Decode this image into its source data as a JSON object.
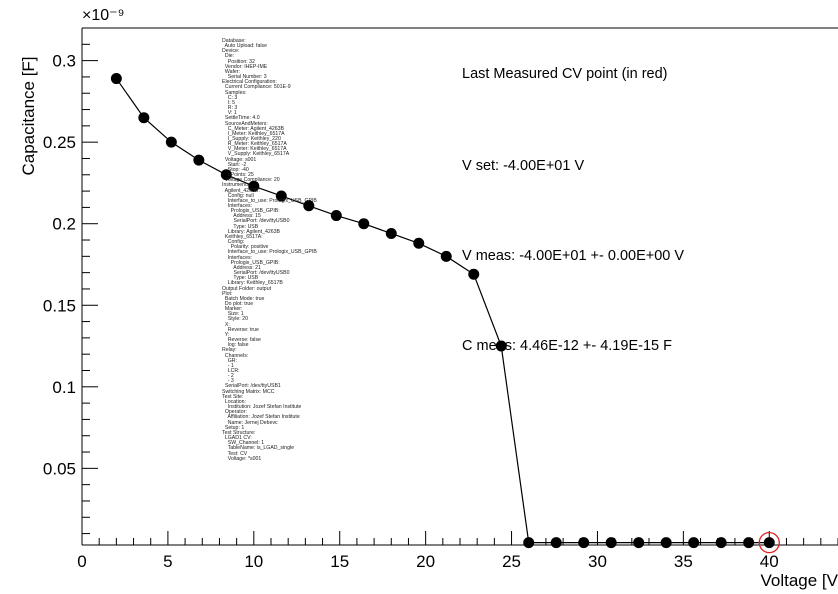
{
  "chart_data": {
    "type": "scatter",
    "title": "",
    "xlabel": "Voltage [V",
    "ylabel": "Capacitance [F]",
    "y_exponent": "×10⁻⁹",
    "xlim": [
      0,
      44
    ],
    "ylim": [
      0.003,
      0.32
    ],
    "x_ticks": [
      0,
      5,
      10,
      15,
      20,
      25,
      30,
      35,
      40
    ],
    "y_ticks": [
      0.05,
      0.1,
      0.15,
      0.2,
      0.25,
      0.3
    ],
    "x_tick_labels": [
      "0",
      "5",
      "10",
      "15",
      "20",
      "25",
      "30",
      "35",
      "40"
    ],
    "y_tick_labels": [
      "0.05",
      "0.1",
      "0.15",
      "0.2",
      "0.25",
      "0.3"
    ],
    "grid": false,
    "series": [
      {
        "x": [
          2,
          3.6,
          5.2,
          6.8,
          8.4,
          10,
          11.6,
          13.2,
          14.8,
          16.4,
          18,
          19.6,
          21.2,
          22.8,
          24.4,
          26,
          27.6,
          29.2,
          30.8,
          32.4,
          34,
          35.6,
          37.2,
          38.8,
          40
        ],
        "y": [
          0.289,
          0.265,
          0.25,
          0.239,
          0.23,
          0.223,
          0.217,
          0.211,
          0.205,
          0.2,
          0.194,
          0.188,
          0.18,
          0.169,
          0.125,
          0.00446,
          0.00446,
          0.00446,
          0.00446,
          0.00446,
          0.00446,
          0.00446,
          0.00446,
          0.00446,
          0.00446
        ]
      }
    ],
    "highlight_point": {
      "x": 40,
      "y": 0.00446,
      "color": "#e02020"
    },
    "annotations": [
      "Last Measured CV point (in red)",
      "V set:  -4.00E+01 V",
      "V meas: -4.00E+01 +- 0.00E+00 V",
      "C meas: 4.46E-12 +- 4.19E-15 F"
    ]
  },
  "config_lines": [
    "Database:",
    "  Auto Upload: false",
    "Device:",
    "  Die:",
    "    Position: 32",
    "  Vendor: IHEP-IME",
    "  Wafer:",
    "    Serial Number: 3",
    "Electrical Configuration:",
    "  Current Compliance: 501E-9",
    "  Samples:",
    "    C: 3",
    "    I: 5",
    "    R: 3",
    "    V: 1",
    "  SettleTime: 4.0",
    "  SourceAndMeters:",
    "    C_Meter: Agilent_4263B",
    "    I_Meter: Keithley_6517A",
    "    I_Supply: Keithley_220",
    "    R_Meter: Keithley_6517A",
    "    V_Meter: Keithley_6517A",
    "    V_Supply: Keithley_6517A",
    "  Voltage: s001",
    "    Start: -2",
    "    Stop: -40",
    "    nPoints: 25",
    "  Voltage Compliance: 20",
    "Instruments:",
    "  Agilent_4263B:",
    "    Config: null",
    "    Interface_to_use: Prologix_USB_GPIB",
    "    Interfaces:",
    "      Prologix_USB_GPIB:",
    "        Address: 15",
    "        SerialPort: /dev/ttyUSB0",
    "        Type: USB",
    "    Library: Agilent_4263B",
    "  Keithley_6517A:",
    "    Config:",
    "      Polarity: positive",
    "    Interface_to_use: Prologix_USB_GPIB",
    "    Interfaces:",
    "      Prologix_USB_GPIB:",
    "        Address: 21",
    "        SerialPort: /dev/ttyUSB0",
    "        Type: USB",
    "    Library: Keithley_6517B",
    "Output Folder: output",
    "Plot:",
    "  Batch Mode: true",
    "  Do plot: true",
    "  Marker:",
    "    Size: 1",
    "    Style: 20",
    "  X:",
    "    Reverse: true",
    "  Y:",
    "    Reverse: false",
    "    log: false",
    "Relay:",
    "  Channels:",
    "    GR:",
    "    - 1",
    "    LCR:",
    "    - 2",
    "    - 3",
    "  SerialPort: /dev/ttyUSB1",
    "Switching Matrix: MCC",
    "Test Site:",
    "  Location:",
    "    Institution: Jozef Stefan Institute",
    "  Operator:",
    "    Affiliation: Jozef Stefan Institute",
    "    Name: Jernej Debevc",
    "  Setup: 1",
    "Test Structure:",
    "  LGAD1 CV:",
    "    SW_Channel: 1",
    "    TableName: is_LGAD_single",
    "    Test: CV",
    "    Voltage: *s001"
  ]
}
